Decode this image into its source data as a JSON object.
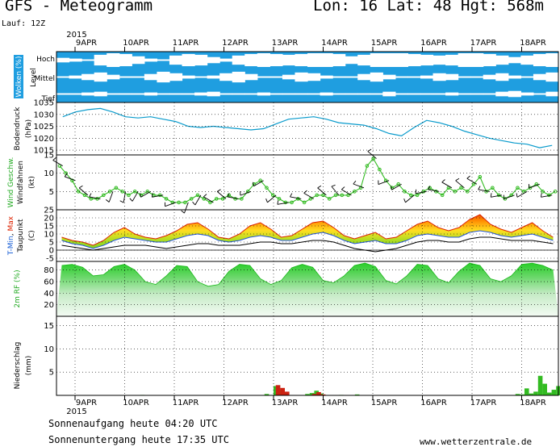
{
  "header": {
    "title": "GFS - Meteogramm",
    "location": "Lon: 16  Lat: 48  Hgt: 568m",
    "run": "Lauf: 12Z"
  },
  "footer": {
    "sunrise": "Sonnenaufgang heute 04:20 UTC",
    "sunset": "Sonnenuntergang heute 17:35 UTC",
    "site": "www.wetterzentrale.de"
  },
  "colors": {
    "clouds": "#1f9ee0",
    "pressure": "#0a9bcc",
    "wind": "#33bb22",
    "precip_green": "#33bb22",
    "precip_red": "#cc2211",
    "tmax": "#dd2200",
    "tmin": "#2255dd",
    "rh": "#22cc22",
    "label_blue": "#1a5fd6",
    "label_green": "#22aa22",
    "label_red": "#dd2200"
  },
  "chart_data": {
    "type": "meteogram",
    "x_year": "2015",
    "x_days": [
      "9APR",
      "10APR",
      "11APR",
      "12APR",
      "13APR",
      "14APR",
      "15APR",
      "16APR",
      "17APR",
      "18APR"
    ],
    "clouds": {
      "panel_label": "Wolken (%)",
      "level_label": "Level",
      "levels": [
        "Hoch",
        "Mittel",
        "Tief"
      ],
      "hoch": [
        0.7,
        0.8,
        0.9,
        0.3,
        0.1,
        0.2,
        0.5,
        0.8,
        0.9,
        0.4,
        0.2,
        0.3,
        0.6,
        0.8,
        0.4,
        0.2,
        0.1,
        0.2,
        0.3,
        0.2,
        0.1,
        0.1,
        0.2,
        0.5,
        0.3,
        0.1,
        0.1,
        0.1,
        0.2,
        0.3,
        0.4,
        0.3,
        0.1,
        0.1,
        0.2,
        0.4,
        0.6,
        0.4,
        0.2,
        0.1
      ],
      "mittel": [
        0.9,
        0.8,
        0.6,
        0.4,
        0.7,
        0.9,
        0.9,
        0.6,
        0.3,
        0.5,
        0.8,
        0.9,
        0.8,
        0.5,
        0.3,
        0.6,
        0.9,
        0.9,
        0.7,
        0.4,
        0.5,
        0.8,
        0.9,
        0.9,
        0.6,
        0.4,
        0.7,
        0.9,
        0.9,
        0.8,
        0.5,
        0.6,
        0.9,
        0.9,
        0.7,
        0.5,
        0.8,
        0.9,
        0.6,
        0.4
      ],
      "tief": [
        0.9,
        0.9,
        0.8,
        0.7,
        0.9,
        0.9,
        0.9,
        0.8,
        0.9,
        0.9,
        0.9,
        0.8,
        0.7,
        0.9,
        0.9,
        0.9,
        0.8,
        0.9,
        0.9,
        0.9,
        0.9,
        0.8,
        0.9,
        0.9,
        0.9,
        0.9,
        0.7,
        0.9,
        0.9,
        0.9,
        0.9,
        0.8,
        0.9,
        0.9,
        0.9,
        0.7,
        0.6,
        0.8,
        0.9,
        0.7
      ]
    },
    "pressure": {
      "panel_label": "Bodendruck",
      "unit": "(hPa)",
      "ylim": [
        1013,
        1035
      ],
      "ticks": [
        1015,
        1020,
        1025,
        1030,
        1035
      ],
      "values": [
        1029,
        1031,
        1032,
        1032.5,
        1031,
        1029,
        1028.5,
        1029,
        1028,
        1027,
        1025,
        1024.5,
        1025,
        1024.5,
        1024,
        1023.5,
        1024,
        1026,
        1028,
        1028.5,
        1029,
        1028,
        1026.5,
        1026,
        1025.5,
        1024,
        1022,
        1021,
        1024.5,
        1027.5,
        1026.5,
        1025,
        1023,
        1021.5,
        1020,
        1019,
        1018,
        1017.5,
        1016,
        1017
      ]
    },
    "wind": {
      "panel_label": "Wind Geschw.",
      "panel_label2": "Windfahnen",
      "unit": "(kt)",
      "ylim": [
        0,
        15
      ],
      "ticks": [
        5,
        10,
        15
      ],
      "values": [
        12,
        10,
        8,
        5,
        4,
        3,
        3,
        4,
        5,
        6,
        5,
        4,
        5,
        4,
        5,
        4,
        4,
        3,
        2,
        2,
        2,
        3,
        4,
        3,
        2,
        3,
        3,
        4,
        3,
        3,
        5,
        7,
        8,
        6,
        4,
        3,
        2,
        2,
        3,
        2,
        3,
        4,
        4,
        3,
        4,
        4,
        4,
        5,
        6,
        12,
        14,
        11,
        8,
        6,
        7,
        5,
        4,
        4,
        5,
        6,
        5,
        4,
        6,
        5,
        6,
        5,
        7,
        9,
        5,
        6,
        4,
        3,
        4,
        6,
        5,
        6,
        7,
        5,
        4,
        5
      ],
      "barb_dirs": [
        300,
        290,
        310,
        280,
        200,
        190,
        210,
        240,
        260,
        250,
        200,
        210,
        300,
        310,
        280,
        250,
        240,
        230,
        260,
        280,
        300,
        310,
        320,
        300,
        290,
        310,
        250,
        240,
        230,
        260,
        280,
        300,
        310,
        300,
        280,
        260,
        250,
        240,
        250,
        260
      ]
    },
    "temperature": {
      "panel_label_parts": [
        "T-",
        "Min",
        ", ",
        "Max"
      ],
      "panel_label2": "Taupunkt",
      "unit": "(C)",
      "ylim": [
        -7,
        25
      ],
      "ticks": [
        -5,
        0,
        5,
        10,
        15,
        20,
        25
      ],
      "tmax": [
        8,
        6,
        5,
        3,
        6,
        11,
        14,
        10,
        8,
        7,
        9,
        12,
        16,
        17,
        13,
        8,
        7,
        10,
        15,
        17,
        13,
        8,
        9,
        13,
        17,
        18,
        14,
        9,
        7,
        9,
        11,
        7,
        8,
        12,
        16,
        18,
        14,
        12,
        14,
        19,
        22,
        16,
        13,
        11,
        14,
        17,
        12,
        8
      ],
      "tmin": [
        6,
        4,
        3,
        1,
        3,
        6,
        8,
        7,
        6,
        5,
        5,
        7,
        9,
        10,
        9,
        6,
        5,
        6,
        8,
        9,
        8,
        6,
        6,
        8,
        10,
        11,
        9,
        6,
        4,
        5,
        6,
        4,
        4,
        6,
        9,
        10,
        9,
        8,
        8,
        11,
        12,
        11,
        9,
        8,
        9,
        10,
        8,
        6
      ],
      "dewpoint": [
        3,
        2,
        1,
        0,
        1,
        2,
        3,
        3,
        3,
        2,
        1,
        2,
        3,
        4,
        4,
        3,
        3,
        3,
        4,
        5,
        5,
        4,
        4,
        5,
        6,
        6,
        5,
        3,
        1,
        0,
        -1,
        0,
        1,
        3,
        5,
        6,
        6,
        5,
        5,
        7,
        8,
        8,
        7,
        6,
        6,
        6,
        5,
        4
      ]
    },
    "humidity": {
      "panel_label": "2m RF (%)",
      "ylim": [
        0,
        95
      ],
      "ticks": [
        20,
        40,
        60,
        80
      ],
      "values": [
        88,
        90,
        85,
        70,
        72,
        86,
        90,
        80,
        60,
        55,
        70,
        88,
        86,
        60,
        52,
        55,
        78,
        90,
        88,
        65,
        55,
        62,
        84,
        90,
        85,
        62,
        58,
        70,
        88,
        92,
        86,
        62,
        56,
        70,
        90,
        88,
        65,
        58,
        78,
        92,
        88,
        65,
        60,
        70,
        90,
        92,
        88,
        80
      ]
    },
    "precip": {
      "panel_label": "Niederschlag",
      "unit": "(mm)",
      "ylim": [
        0,
        17
      ],
      "ticks": [
        5,
        10,
        15
      ],
      "green": [
        0,
        0,
        0,
        0,
        0,
        0,
        0,
        0,
        0,
        0,
        0,
        0,
        0,
        0,
        0,
        0,
        0,
        0,
        0,
        0,
        0,
        0,
        0,
        0,
        0,
        0,
        0,
        0,
        0,
        0,
        0,
        0,
        0,
        0,
        0,
        0,
        0,
        0.1,
        0,
        0,
        0,
        0,
        0,
        0,
        0,
        0,
        0,
        0,
        0,
        0,
        0,
        0,
        0,
        0,
        0,
        0,
        0,
        0,
        0,
        0,
        0,
        0,
        0,
        0,
        0,
        0,
        0,
        0,
        0,
        0,
        0,
        0,
        0,
        0,
        0,
        0,
        0,
        0,
        0,
        0,
        0,
        0,
        0,
        0,
        0,
        0,
        0,
        0,
        0,
        0,
        0,
        0,
        0.3,
        0,
        0,
        0,
        2.0,
        0,
        1.2,
        0,
        0.6,
        0,
        0,
        0,
        0,
        0,
        0,
        0,
        0,
        0,
        0.3,
        0,
        0.5,
        0.2,
        1.0,
        0,
        0.4,
        0,
        0,
        0,
        0,
        0,
        0,
        0,
        0,
        0.1,
        0,
        0,
        0,
        0,
        0,
        0,
        0.2,
        0,
        0,
        0,
        0,
        0,
        0,
        0,
        0,
        0,
        0,
        0,
        0,
        0,
        0,
        0,
        0,
        0,
        0,
        0,
        0,
        0,
        0,
        0,
        0,
        0,
        0,
        0,
        0,
        0,
        0,
        0,
        0,
        0,
        0,
        0,
        0,
        0,
        0,
        0,
        0,
        0,
        0,
        0,
        0,
        0,
        0,
        0,
        0,
        0,
        0,
        0,
        0,
        0,
        0,
        0,
        0,
        0,
        0,
        0,
        0,
        0,
        0,
        0,
        0,
        0,
        0,
        0,
        0,
        0,
        0,
        0.3,
        0,
        0.2,
        0,
        1.5,
        0,
        0.4,
        0,
        0.8,
        0,
        4.2,
        0,
        2.5,
        0,
        0.6,
        0,
        1.2,
        0,
        2.0
      ],
      "red": [
        0,
        0,
        0,
        0,
        0,
        0,
        0,
        0,
        0,
        0,
        0,
        0,
        0,
        0,
        0,
        0,
        0,
        0,
        0,
        0,
        0,
        0,
        0,
        0,
        0,
        0,
        0,
        0,
        0,
        0,
        0,
        0,
        0,
        0,
        0,
        0,
        0,
        0,
        0,
        0,
        0,
        0,
        0,
        0,
        0,
        0,
        0,
        0,
        0,
        0,
        0,
        0,
        0,
        0,
        0,
        0,
        0,
        0,
        0,
        0,
        0,
        0,
        0,
        0,
        0,
        0,
        0,
        0,
        0,
        0,
        0,
        0,
        0,
        0,
        0,
        0,
        0,
        0,
        0,
        0,
        0,
        0,
        0,
        0,
        0,
        0,
        0,
        0,
        0,
        0,
        0,
        0,
        0,
        0,
        0,
        0,
        0,
        2.2,
        0,
        1.6,
        0,
        0.8,
        0,
        0,
        0,
        0,
        0,
        0,
        0,
        0,
        0,
        0,
        0,
        0.3,
        0,
        0.7,
        0,
        0.2,
        0,
        0,
        0,
        0,
        0,
        0,
        0,
        0,
        0,
        0,
        0,
        0,
        0,
        0,
        0,
        0,
        0,
        0,
        0,
        0,
        0,
        0,
        0,
        0,
        0,
        0,
        0,
        0,
        0,
        0,
        0,
        0,
        0,
        0,
        0,
        0,
        0,
        0,
        0,
        0,
        0,
        0,
        0,
        0,
        0,
        0,
        0,
        0,
        0,
        0,
        0,
        0,
        0,
        0,
        0,
        0,
        0,
        0,
        0,
        0,
        0,
        0,
        0,
        0,
        0,
        0,
        0,
        0,
        0,
        0,
        0,
        0,
        0,
        0,
        0,
        0,
        0,
        0,
        0,
        0,
        0,
        0,
        0,
        0,
        0,
        0,
        0,
        0,
        0,
        0,
        0,
        0,
        0,
        0,
        0,
        0,
        0,
        0,
        0,
        0,
        0
      ]
    }
  }
}
